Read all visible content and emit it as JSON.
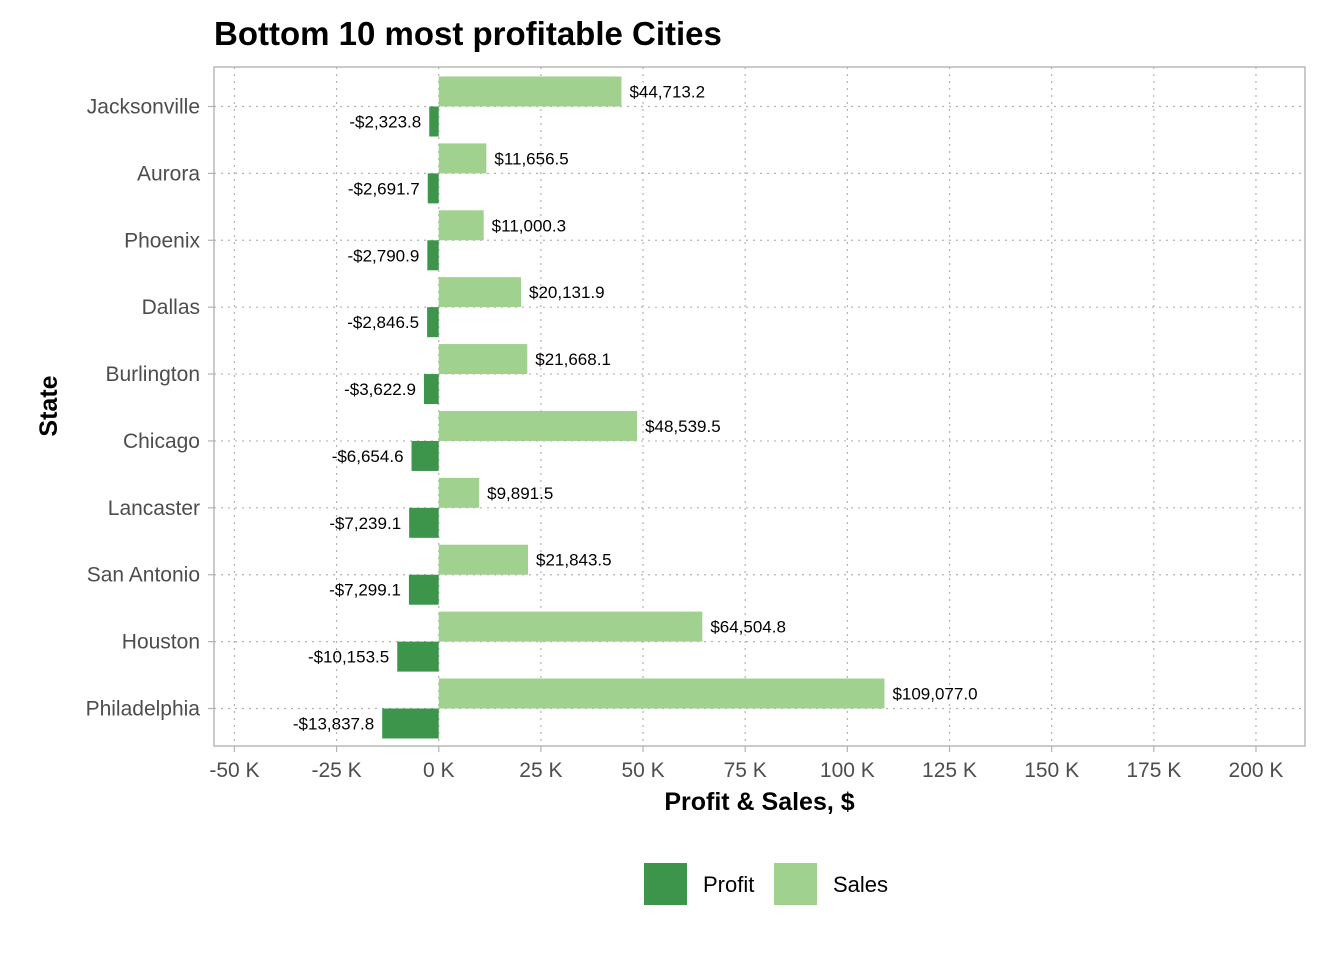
{
  "chart_data": {
    "type": "bar",
    "orientation": "horizontal",
    "title": "Bottom 10 most profitable Cities",
    "xlabel": "Profit & Sales, $",
    "ylabel": "State",
    "xlim": [
      -55000,
      212000
    ],
    "x_ticks": [
      {
        "value": -50000,
        "label": "-50 K"
      },
      {
        "value": -25000,
        "label": "-25 K"
      },
      {
        "value": 0,
        "label": "0 K"
      },
      {
        "value": 25000,
        "label": "25 K"
      },
      {
        "value": 50000,
        "label": "50 K"
      },
      {
        "value": 75000,
        "label": "75 K"
      },
      {
        "value": 100000,
        "label": "100 K"
      },
      {
        "value": 125000,
        "label": "125 K"
      },
      {
        "value": 150000,
        "label": "150 K"
      },
      {
        "value": 175000,
        "label": "175 K"
      },
      {
        "value": 200000,
        "label": "200 K"
      }
    ],
    "grid": true,
    "legend_position": "bottom",
    "categories": [
      "Jacksonville",
      "Aurora",
      "Phoenix",
      "Dallas",
      "Burlington",
      "Chicago",
      "Lancaster",
      "San Antonio",
      "Houston",
      "Philadelphia"
    ],
    "series": [
      {
        "name": "Profit",
        "color": "#3d944b",
        "values": [
          -2323.8,
          -2691.7,
          -2790.9,
          -2846.5,
          -3622.9,
          -6654.6,
          -7239.1,
          -7299.1,
          -10153.5,
          -13837.8
        ],
        "labels": [
          "-$2,323.8",
          "-$2,691.7",
          "-$2,790.9",
          "-$2,846.5",
          "-$3,622.9",
          "-$6,654.6",
          "-$7,239.1",
          "-$7,299.1",
          "-$10,153.5",
          "-$13,837.8"
        ]
      },
      {
        "name": "Sales",
        "color": "#a0d18e",
        "values": [
          44713.2,
          11656.5,
          11000.3,
          20131.9,
          21668.1,
          48539.5,
          9891.5,
          21843.5,
          64504.8,
          109077.0
        ],
        "labels": [
          "$44,713.2",
          "$11,656.5",
          "$11,000.3",
          "$20,131.9",
          "$21,668.1",
          "$48,539.5",
          "$9,891.5",
          "$21,843.5",
          "$64,504.8",
          "$109,077.0"
        ]
      }
    ]
  }
}
